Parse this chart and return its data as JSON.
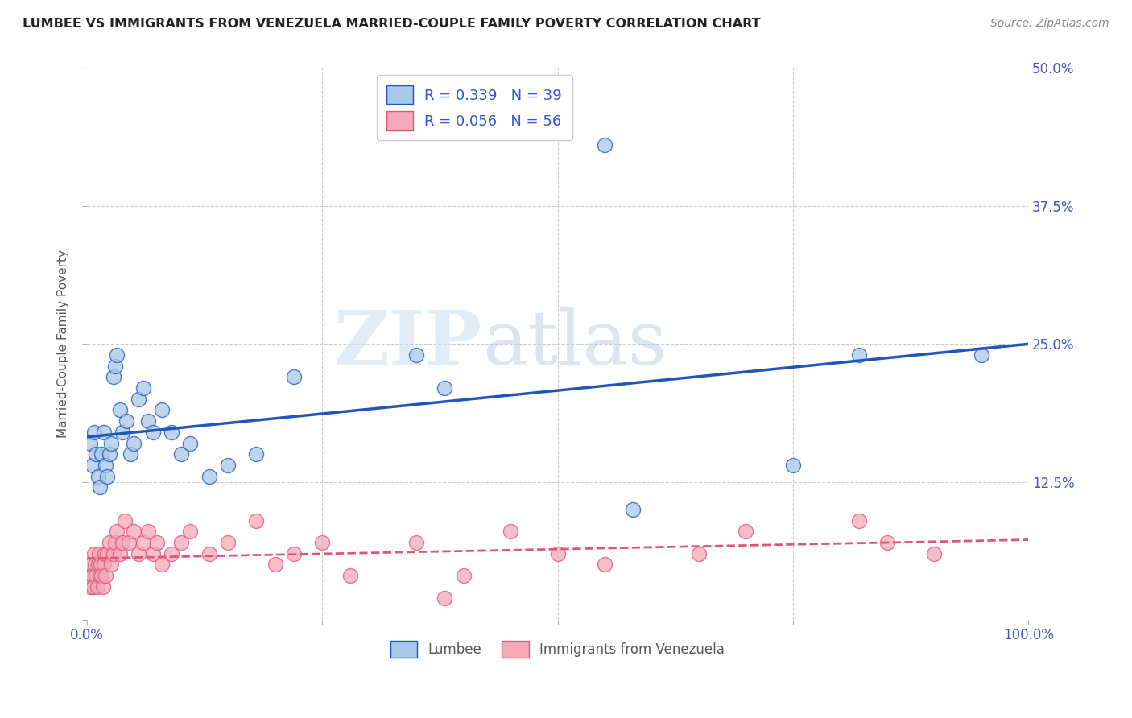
{
  "title": "LUMBEE VS IMMIGRANTS FROM VENEZUELA MARRIED-COUPLE FAMILY POVERTY CORRELATION CHART",
  "source": "Source: ZipAtlas.com",
  "ylabel": "Married-Couple Family Poverty",
  "xlim": [
    0,
    1.0
  ],
  "ylim": [
    0,
    0.5
  ],
  "lumbee_R": 0.339,
  "lumbee_N": 39,
  "venezuela_R": 0.056,
  "venezuela_N": 56,
  "lumbee_color": "#a8c8e8",
  "venezuela_color": "#f4a8b8",
  "lumbee_line_color": "#2255bb",
  "venezuela_line_color": "#dd5577",
  "watermark_zip": "ZIP",
  "watermark_atlas": "atlas",
  "background_color": "#ffffff",
  "grid_color": "#cccccc",
  "lumbee_x": [
    0.004,
    0.006,
    0.008,
    0.01,
    0.012,
    0.014,
    0.016,
    0.018,
    0.02,
    0.022,
    0.024,
    0.026,
    0.028,
    0.03,
    0.032,
    0.035,
    0.038,
    0.042,
    0.046,
    0.05,
    0.055,
    0.06,
    0.065,
    0.07,
    0.08,
    0.09,
    0.1,
    0.11,
    0.13,
    0.15,
    0.18,
    0.22,
    0.35,
    0.38,
    0.55,
    0.58,
    0.75,
    0.82,
    0.95
  ],
  "lumbee_y": [
    0.16,
    0.14,
    0.17,
    0.15,
    0.13,
    0.12,
    0.15,
    0.17,
    0.14,
    0.13,
    0.15,
    0.16,
    0.22,
    0.23,
    0.24,
    0.19,
    0.17,
    0.18,
    0.15,
    0.16,
    0.2,
    0.21,
    0.18,
    0.17,
    0.19,
    0.17,
    0.15,
    0.16,
    0.13,
    0.14,
    0.15,
    0.22,
    0.24,
    0.21,
    0.43,
    0.1,
    0.14,
    0.24,
    0.24
  ],
  "venezuela_x": [
    0.003,
    0.004,
    0.005,
    0.006,
    0.007,
    0.008,
    0.009,
    0.01,
    0.011,
    0.012,
    0.013,
    0.014,
    0.015,
    0.016,
    0.017,
    0.018,
    0.019,
    0.02,
    0.022,
    0.024,
    0.026,
    0.028,
    0.03,
    0.032,
    0.035,
    0.038,
    0.04,
    0.045,
    0.05,
    0.055,
    0.06,
    0.065,
    0.07,
    0.075,
    0.08,
    0.09,
    0.1,
    0.11,
    0.13,
    0.15,
    0.18,
    0.2,
    0.22,
    0.25,
    0.28,
    0.35,
    0.38,
    0.4,
    0.45,
    0.5,
    0.55,
    0.65,
    0.7,
    0.82,
    0.85,
    0.9
  ],
  "venezuela_y": [
    0.04,
    0.03,
    0.05,
    0.04,
    0.03,
    0.06,
    0.05,
    0.04,
    0.03,
    0.05,
    0.06,
    0.04,
    0.05,
    0.04,
    0.03,
    0.05,
    0.06,
    0.04,
    0.06,
    0.07,
    0.05,
    0.06,
    0.07,
    0.08,
    0.06,
    0.07,
    0.09,
    0.07,
    0.08,
    0.06,
    0.07,
    0.08,
    0.06,
    0.07,
    0.05,
    0.06,
    0.07,
    0.08,
    0.06,
    0.07,
    0.09,
    0.05,
    0.06,
    0.07,
    0.04,
    0.07,
    0.02,
    0.04,
    0.08,
    0.06,
    0.05,
    0.06,
    0.08,
    0.09,
    0.07,
    0.06
  ]
}
